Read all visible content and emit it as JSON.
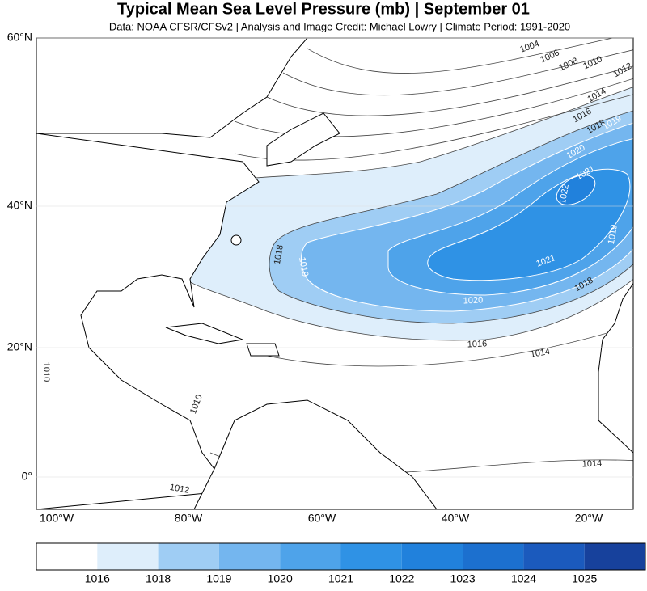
{
  "header": {
    "title": "Typical Mean Sea Level Pressure (mb) | September 01",
    "subtitle": "Data: NOAA CFSR/CFSv2 | Analysis and Image Credit: Michael Lowry | Climate Period: 1991-2020"
  },
  "map": {
    "lat_labels": [
      "60°N",
      "40°N",
      "20°N",
      "0°"
    ],
    "lon_labels": [
      "100°W",
      "80°W",
      "60°W",
      "40°W",
      "20°W"
    ],
    "contour_labels": [
      "1004",
      "1006",
      "1008",
      "1010",
      "1012",
      "1014",
      "1016",
      "1018",
      "1019",
      "1020",
      "1021",
      "1022",
      "1018",
      "1019",
      "1020",
      "1021",
      "1018",
      "1019",
      "1016",
      "1014",
      "1010",
      "1010",
      "1014",
      "1012"
    ]
  },
  "colorbar": {
    "colors": [
      "#ffffff",
      "#deeefb",
      "#9fcdf4",
      "#74b6ef",
      "#4ea3ea",
      "#2f92e5",
      "#2181dc",
      "#1c70cf",
      "#1b5abd",
      "#17419c"
    ],
    "ticks": [
      "1016",
      "1018",
      "1019",
      "1020",
      "1021",
      "1022",
      "1023",
      "1024",
      "1025"
    ]
  }
}
